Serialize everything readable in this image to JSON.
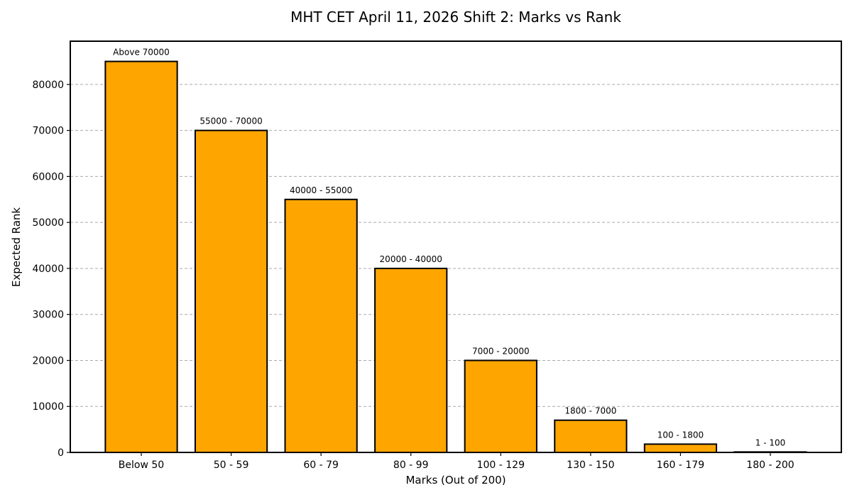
{
  "chart_data": {
    "type": "bar",
    "title": "MHT CET April 11, 2026 Shift 2: Marks vs Rank",
    "xlabel": "Marks (Out of 200)",
    "ylabel": "Expected Rank",
    "categories": [
      "Below 50",
      "50 - 59",
      "60 - 79",
      "80 - 99",
      "100 - 129",
      "130 - 150",
      "160 - 179",
      "180 - 200"
    ],
    "values": [
      85000,
      70000,
      55000,
      40000,
      20000,
      7000,
      1800,
      100
    ],
    "bar_labels": [
      "Above 70000",
      "55000 - 70000",
      "40000 - 55000",
      "20000 - 40000",
      "7000 - 20000",
      "1800 - 7000",
      "100 - 1800",
      "1 - 100"
    ],
    "ylim": [
      0,
      89400
    ],
    "yticks": [
      0,
      10000,
      20000,
      30000,
      40000,
      50000,
      60000,
      70000,
      80000
    ],
    "grid": "y dashed",
    "bar_color": "#FFA500",
    "edge_color": "#000000",
    "grid_color": "#aaaaaa"
  }
}
